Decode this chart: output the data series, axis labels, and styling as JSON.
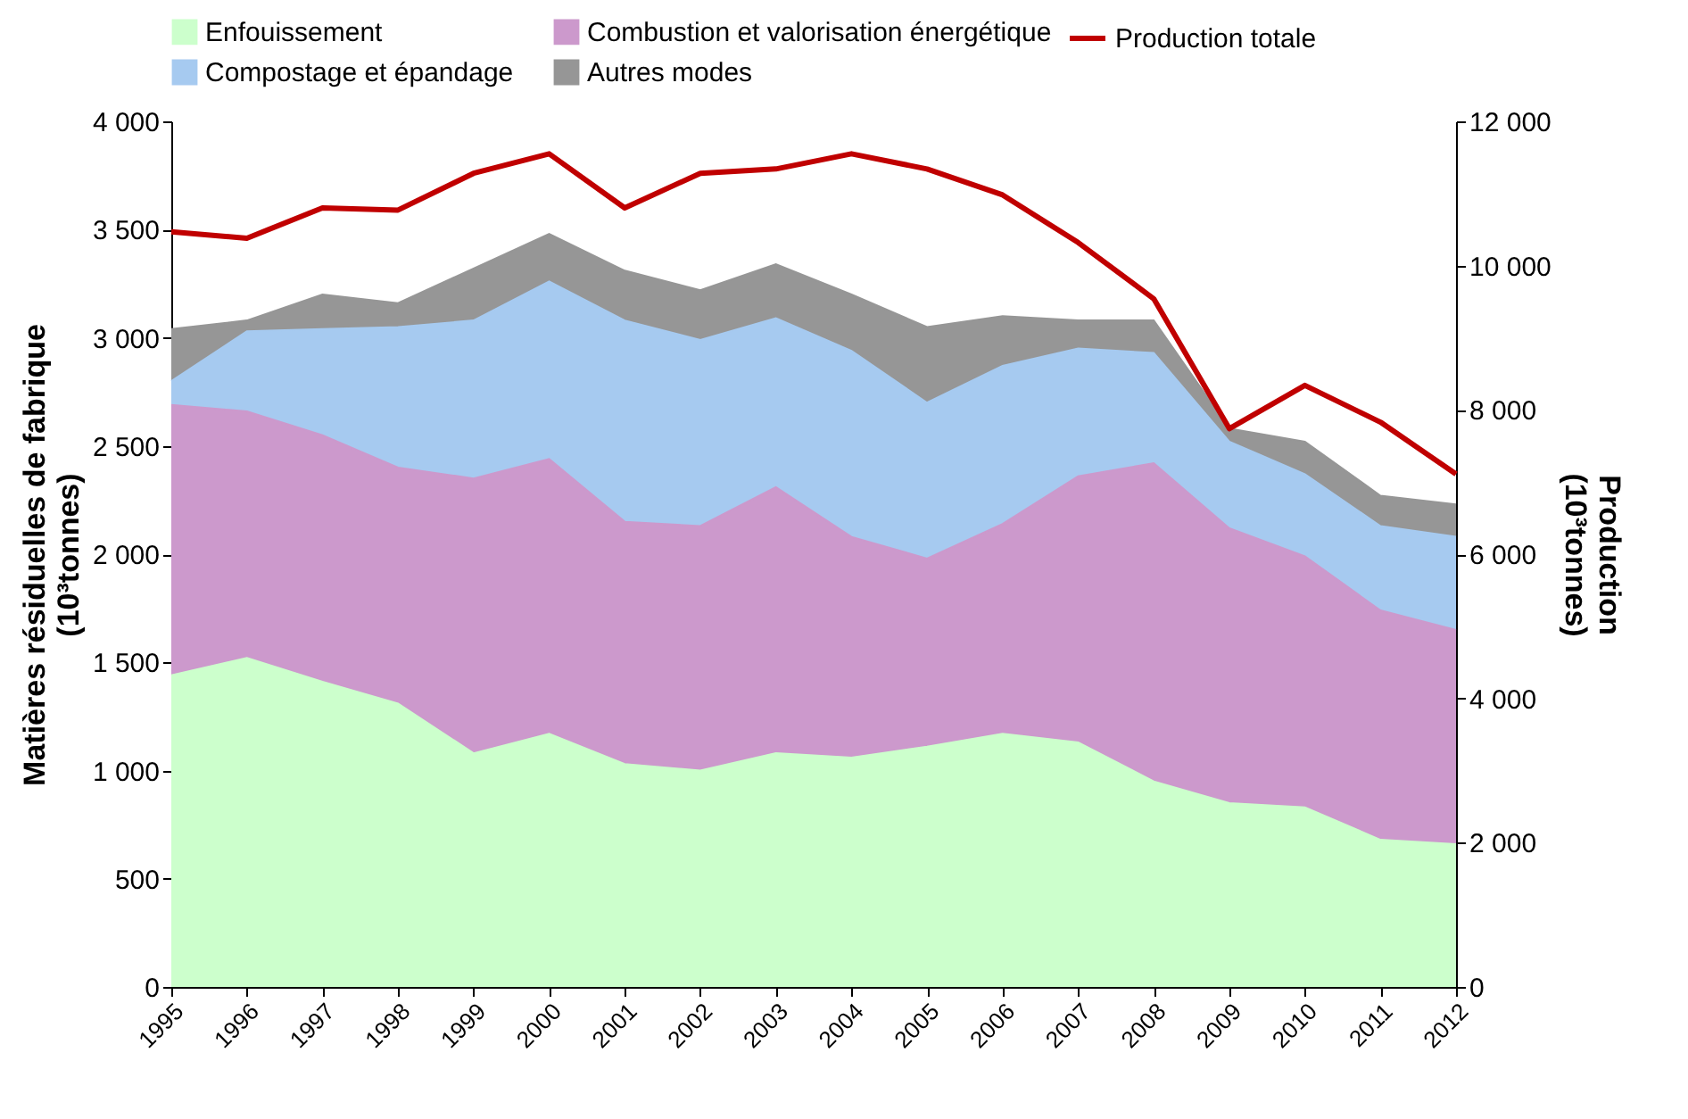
{
  "chart_data": {
    "type": "area",
    "stacked": true,
    "ylabel": "Matières résiduelles de fabrique\n(10³tonnes)",
    "y2label": "Production\n(10³tonnes)",
    "x": [
      1995,
      1996,
      1997,
      1998,
      1999,
      2000,
      2001,
      2002,
      2003,
      2004,
      2005,
      2006,
      2007,
      2008,
      2009,
      2010,
      2011,
      2012
    ],
    "xlim": [
      1995,
      2012
    ],
    "xticks": [
      1995,
      1996,
      1997,
      1998,
      1999,
      2000,
      2001,
      2002,
      2003,
      2004,
      2005,
      2006,
      2007,
      2008,
      2009,
      2010,
      2011,
      2012
    ],
    "ylim": [
      0,
      4000
    ],
    "yticks": [
      0,
      500,
      {
        "value": 1000,
        "label": "1 000"
      },
      {
        "value": 1500,
        "label": "1 500"
      },
      {
        "value": 2000,
        "label": "2 000"
      },
      {
        "value": 2500,
        "label": "2 500"
      },
      {
        "value": 3000,
        "label": "3 000"
      },
      {
        "value": 3500,
        "label": "3 500"
      },
      {
        "value": 4000,
        "label": "4 000"
      }
    ],
    "y2lim": [
      0,
      12000
    ],
    "y2ticks": [
      0,
      {
        "value": 2000,
        "label": "2 000"
      },
      {
        "value": 4000,
        "label": "4 000"
      },
      {
        "value": 6000,
        "label": "6 000"
      },
      {
        "value": 8000,
        "label": "8 000"
      },
      {
        "value": 10000,
        "label": "10 000"
      },
      {
        "value": 12000,
        "label": "12 000"
      }
    ],
    "grid": false,
    "legend": "top",
    "series": [
      {
        "name": "Enfouissement",
        "color": "#ccffcc",
        "values": [
          1440,
          1520,
          1410,
          1310,
          1080,
          1170,
          1030,
          1000,
          1080,
          1060,
          1110,
          1170,
          1130,
          950,
          850,
          830,
          680,
          660
        ]
      },
      {
        "name": "Combustion et valorisation énergétique",
        "color": "#cc99cc",
        "values": [
          1250,
          1140,
          1140,
          1090,
          1270,
          1270,
          1120,
          1130,
          1230,
          1020,
          870,
          970,
          1230,
          1470,
          1270,
          1160,
          1060,
          990
        ]
      },
      {
        "name": "Compostage et épandage",
        "color": "#a6caf0",
        "values": [
          110,
          370,
          490,
          650,
          730,
          820,
          930,
          860,
          780,
          860,
          720,
          730,
          590,
          510,
          400,
          380,
          390,
          430
        ]
      },
      {
        "name": "Autres modes",
        "color": "#969696",
        "values": [
          240,
          50,
          160,
          110,
          240,
          220,
          230,
          230,
          250,
          260,
          350,
          230,
          130,
          150,
          60,
          150,
          140,
          150
        ]
      },
      {
        "name": "Production totale",
        "color": "#c00000",
        "type": "line",
        "axis": "y2",
        "line_style": "solid",
        "values": [
          10470,
          10380,
          10800,
          10770,
          11280,
          11550,
          10800,
          11280,
          11340,
          11550,
          11340,
          10980,
          10320,
          9540,
          7740,
          8340,
          7830,
          7110
        ]
      }
    ]
  }
}
